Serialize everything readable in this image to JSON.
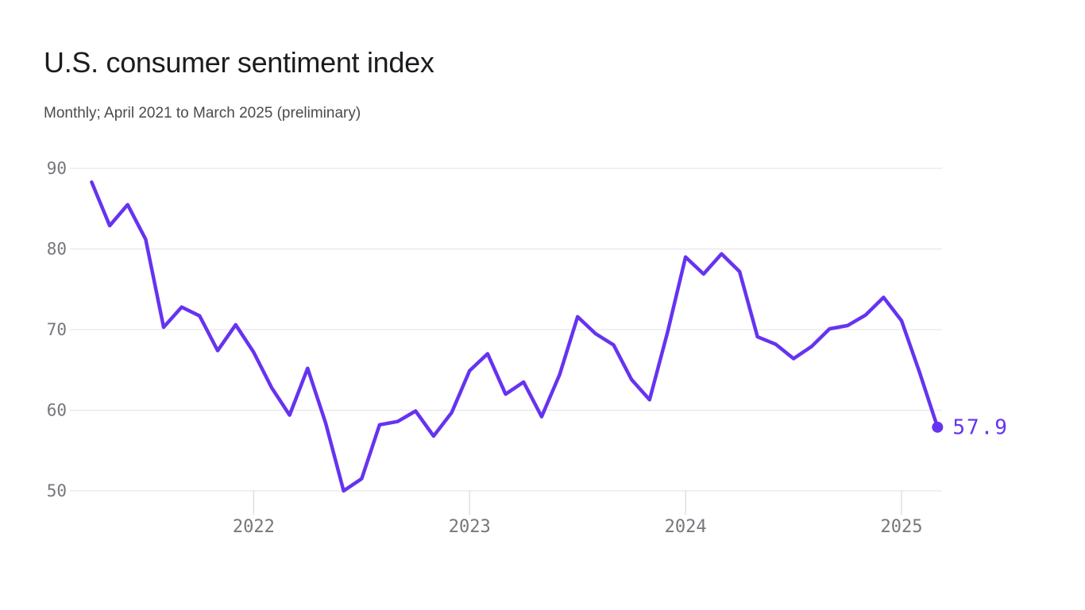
{
  "chart_data": {
    "type": "line",
    "title": "U.S. consumer sentiment index",
    "subtitle": "Monthly; April 2021 to March 2025 (preliminary)",
    "series_name": "U.S. consumer sentiment index",
    "x": [
      "2021-04",
      "2021-05",
      "2021-06",
      "2021-07",
      "2021-08",
      "2021-09",
      "2021-10",
      "2021-11",
      "2021-12",
      "2022-01",
      "2022-02",
      "2022-03",
      "2022-04",
      "2022-05",
      "2022-06",
      "2022-07",
      "2022-08",
      "2022-09",
      "2022-10",
      "2022-11",
      "2022-12",
      "2023-01",
      "2023-02",
      "2023-03",
      "2023-04",
      "2023-05",
      "2023-06",
      "2023-07",
      "2023-08",
      "2023-09",
      "2023-10",
      "2023-11",
      "2023-12",
      "2024-01",
      "2024-02",
      "2024-03",
      "2024-04",
      "2024-05",
      "2024-06",
      "2024-07",
      "2024-08",
      "2024-09",
      "2024-10",
      "2024-11",
      "2024-12",
      "2025-01",
      "2025-02",
      "2025-03"
    ],
    "values": [
      88.3,
      82.9,
      85.5,
      81.2,
      70.3,
      72.8,
      71.7,
      67.4,
      70.6,
      67.2,
      62.8,
      59.4,
      65.2,
      58.4,
      50.0,
      51.5,
      58.2,
      58.6,
      59.9,
      56.8,
      59.7,
      64.9,
      67.0,
      62.0,
      63.5,
      59.2,
      64.4,
      71.6,
      69.5,
      68.1,
      63.8,
      61.3,
      69.7,
      79.0,
      76.9,
      79.4,
      77.2,
      69.1,
      68.2,
      66.4,
      67.9,
      70.1,
      70.5,
      71.8,
      74.0,
      71.1,
      64.7,
      57.9
    ],
    "ylim": [
      50,
      90
    ],
    "y_ticks": [
      90,
      80,
      70,
      60,
      50
    ],
    "x_tick_labels": [
      "2022",
      "2023",
      "2024",
      "2025"
    ],
    "grid": "horizontal",
    "legend": "none",
    "end_label": "57.9",
    "colors": {
      "line": "#6633f0",
      "dot": "#6633f0",
      "end_label": "#6633f0",
      "grid": "#e6e6e9",
      "tick": "#dadade",
      "axis_label": "#76767c",
      "title": "#1b1c20",
      "subtitle": "#4a4a50"
    }
  }
}
